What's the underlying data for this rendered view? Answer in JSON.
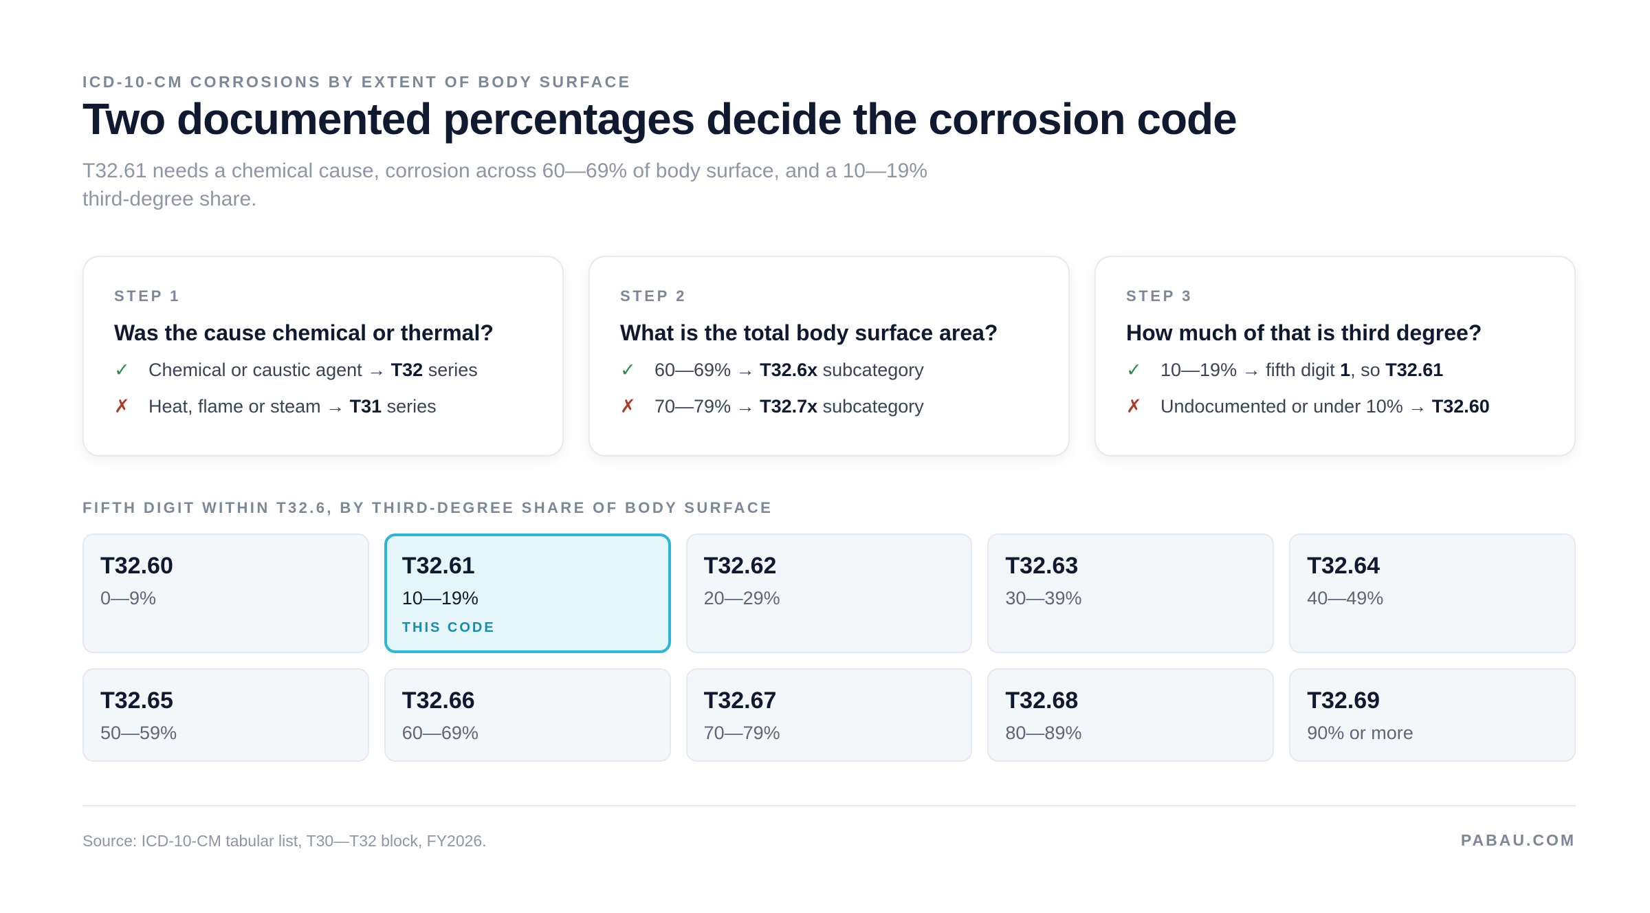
{
  "header": {
    "eyebrow": "ICD-10-CM CORROSIONS BY EXTENT OF BODY SURFACE",
    "title": "Two documented percentages decide the corrosion code",
    "subtitle": "T32.61 needs a chemical cause, corrosion across 60—69% of body surface, and a 10—19% third-degree share."
  },
  "steps": [
    {
      "label": "STEP 1",
      "question": "Was the cause chemical or thermal?",
      "lines": [
        {
          "mark": "✓",
          "status": "ok",
          "pre": "Chemical or caustic agent → ",
          "bold": "T32",
          "post": " series"
        },
        {
          "mark": "✗",
          "status": "no",
          "pre": "Heat, flame or steam → ",
          "bold": "T31",
          "post": " series"
        }
      ]
    },
    {
      "label": "STEP 2",
      "question": "What is the total body surface area?",
      "lines": [
        {
          "mark": "✓",
          "status": "ok",
          "pre": "60—69% → ",
          "bold": "T32.6x",
          "post": " subcategory"
        },
        {
          "mark": "✗",
          "status": "no",
          "pre": "70—79% → ",
          "bold": "T32.7x",
          "post": " subcategory"
        }
      ]
    },
    {
      "label": "STEP 3",
      "question": "How much of that is third degree?",
      "lines": [
        {
          "mark": "✓",
          "status": "ok",
          "pre": "10—19% → fifth digit ",
          "bold": "1",
          "post": ", so ",
          "bold2": "T32.61"
        },
        {
          "mark": "✗",
          "status": "no",
          "pre": "Undocumented or under 10% → ",
          "bold": "T32.60",
          "post": ""
        }
      ]
    }
  ],
  "grid": {
    "label": "FIFTH DIGIT WITHIN T32.6, BY THIRD-DEGREE SHARE OF BODY SURFACE",
    "highlight_tag": "THIS CODE",
    "codes": [
      {
        "code": "T32.60",
        "range": "0—9%"
      },
      {
        "code": "T32.61",
        "range": "10—19%",
        "highlight": true
      },
      {
        "code": "T32.62",
        "range": "20—29%"
      },
      {
        "code": "T32.63",
        "range": "30—39%"
      },
      {
        "code": "T32.64",
        "range": "40—49%"
      },
      {
        "code": "T32.65",
        "range": "50—59%"
      },
      {
        "code": "T32.66",
        "range": "60—69%"
      },
      {
        "code": "T32.67",
        "range": "70—79%"
      },
      {
        "code": "T32.68",
        "range": "80—89%"
      },
      {
        "code": "T32.69",
        "range": "90% or more"
      }
    ]
  },
  "footer": {
    "source": "Source: ICD-10-CM tabular list, T30—T32 block, FY2026.",
    "brand": "PABAU.COM"
  },
  "colors": {
    "accent": "#2bb5d6",
    "ok": "#2d8a55",
    "no": "#b13b2b"
  }
}
